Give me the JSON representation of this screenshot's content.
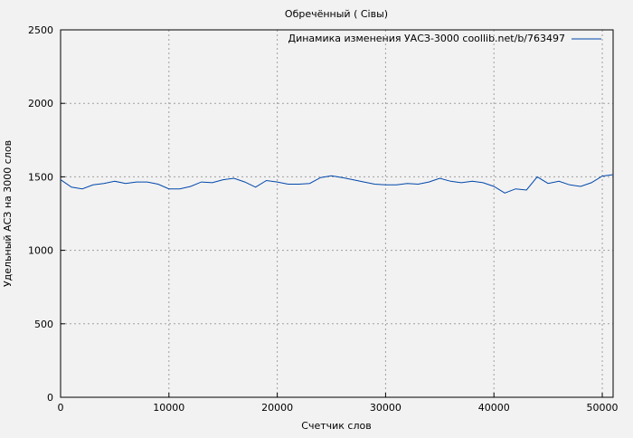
{
  "chart_data": {
    "type": "line",
    "title": "Обречённый ( Сівы)",
    "xlabel": "Счетчик слов",
    "ylabel": "Удельный АСЗ на 3000 слов",
    "xlim": [
      0,
      51000
    ],
    "ylim": [
      0,
      2500
    ],
    "xticks": [
      0,
      10000,
      20000,
      30000,
      40000,
      50000
    ],
    "yticks": [
      0,
      500,
      1000,
      1500,
      2000,
      2500
    ],
    "grid": true,
    "legend_position": "top-right",
    "series": [
      {
        "name": "Динамика изменения УАСЗ-3000 coollib.net/b/763497",
        "color": "#0047ab",
        "x": [
          0,
          1000,
          2000,
          3000,
          4000,
          5000,
          6000,
          7000,
          8000,
          9000,
          10000,
          11000,
          12000,
          13000,
          14000,
          15000,
          16000,
          17000,
          18000,
          19000,
          20000,
          21000,
          22000,
          23000,
          24000,
          25000,
          26000,
          27000,
          28000,
          29000,
          30000,
          31000,
          32000,
          33000,
          34000,
          35000,
          36000,
          37000,
          38000,
          39000,
          40000,
          41000,
          42000,
          43000,
          44000,
          45000,
          46000,
          47000,
          48000,
          49000,
          50000,
          51000
        ],
        "y": [
          1480,
          1430,
          1418,
          1445,
          1455,
          1470,
          1455,
          1465,
          1465,
          1450,
          1418,
          1418,
          1435,
          1465,
          1460,
          1480,
          1490,
          1465,
          1430,
          1475,
          1465,
          1450,
          1450,
          1455,
          1495,
          1507,
          1495,
          1480,
          1465,
          1450,
          1445,
          1445,
          1455,
          1450,
          1465,
          1490,
          1470,
          1460,
          1470,
          1460,
          1435,
          1390,
          1418,
          1410,
          1500,
          1455,
          1470,
          1445,
          1435,
          1460,
          1505,
          1515
        ]
      }
    ]
  }
}
